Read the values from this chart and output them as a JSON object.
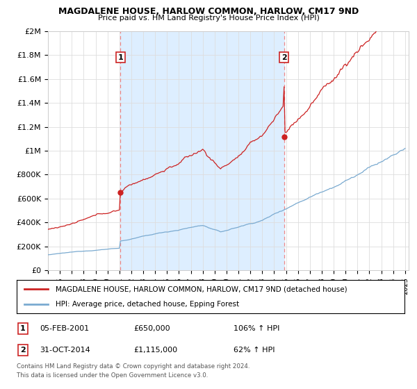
{
  "title": "MAGDALENE HOUSE, HARLOW COMMON, HARLOW, CM17 9ND",
  "subtitle": "Price paid vs. HM Land Registry's House Price Index (HPI)",
  "ylim": [
    0,
    2000000
  ],
  "yticks": [
    0,
    200000,
    400000,
    600000,
    800000,
    1000000,
    1200000,
    1400000,
    1600000,
    1800000,
    2000000
  ],
  "ytick_labels": [
    "£0",
    "£200K",
    "£400K",
    "£600K",
    "£800K",
    "£1M",
    "£1.2M",
    "£1.4M",
    "£1.6M",
    "£1.8M",
    "£2M"
  ],
  "x_start_year": 1995,
  "x_end_year": 2025,
  "sale1_year": 2001.09,
  "sale1_price": 650000,
  "sale2_year": 2014.83,
  "sale2_price": 1115000,
  "hpi_line_color": "#7aaad0",
  "hpi_fill_color": "#ddeeff",
  "price_line_color": "#cc2222",
  "dashed_line_color": "#ee8888",
  "legend_text1": "MAGDALENE HOUSE, HARLOW COMMON, HARLOW, CM17 9ND (detached house)",
  "legend_text2": "HPI: Average price, detached house, Epping Forest",
  "sale1_text": "05-FEB-2001",
  "sale1_amount": "£650,000",
  "sale1_hpi": "106% ↑ HPI",
  "sale2_text": "31-OCT-2014",
  "sale2_amount": "£1,115,000",
  "sale2_hpi": "62% ↑ HPI",
  "footnote": "Contains HM Land Registry data © Crown copyright and database right 2024.\nThis data is licensed under the Open Government Licence v3.0.",
  "background_color": "#ffffff",
  "grid_color": "#dddddd"
}
